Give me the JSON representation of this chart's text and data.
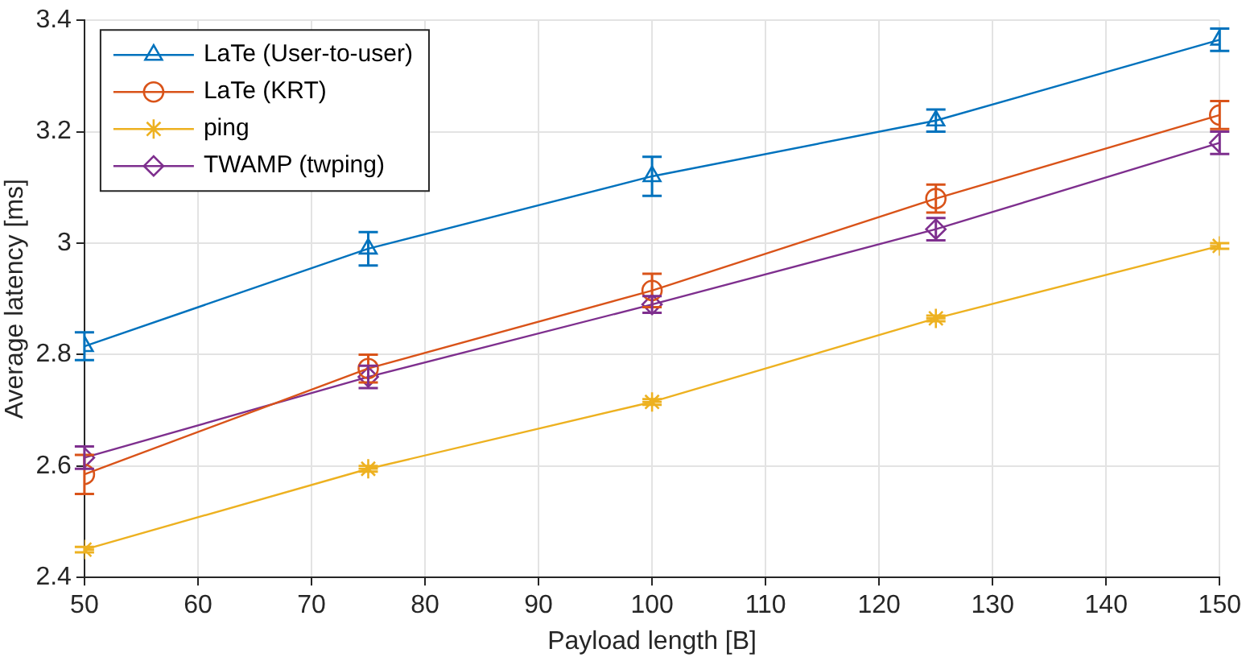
{
  "chart_data": {
    "type": "line",
    "xlabel": "Payload length [B]",
    "ylabel": "Average latency [ms]",
    "x": [
      50,
      75,
      100,
      125,
      150
    ],
    "xlim": [
      50,
      150
    ],
    "xticks": [
      50,
      60,
      70,
      80,
      90,
      100,
      110,
      120,
      130,
      140,
      150
    ],
    "ylim": [
      2.4,
      3.4
    ],
    "yticks": [
      2.4,
      2.6,
      2.8,
      3,
      3.2,
      3.4
    ],
    "grid": true,
    "legend": "top left",
    "line_style": "solid",
    "series": [
      {
        "name": "LaTe (User-to-user)",
        "color": "#0072bd",
        "marker": "triangle",
        "values": [
          2.815,
          2.99,
          3.12,
          3.22,
          3.365
        ],
        "errors": [
          0.025,
          0.03,
          0.035,
          0.02,
          0.02
        ]
      },
      {
        "name": "LaTe (KRT)",
        "color": "#d95319",
        "marker": "circle",
        "values": [
          2.585,
          2.775,
          2.915,
          3.08,
          3.23
        ],
        "errors": [
          0.035,
          0.025,
          0.03,
          0.025,
          0.025
        ]
      },
      {
        "name": "ping",
        "color": "#edb120",
        "marker": "cross",
        "values": [
          2.45,
          2.595,
          2.715,
          2.865,
          2.995
        ],
        "errors": [
          0.005,
          0.005,
          0.005,
          0.005,
          0.005
        ]
      },
      {
        "name": "TWAMP (twping)",
        "color": "#7e2f8e",
        "marker": "diamond",
        "values": [
          2.615,
          2.76,
          2.89,
          3.025,
          3.18
        ],
        "errors": [
          0.02,
          0.02,
          0.015,
          0.02,
          0.02
        ]
      }
    ]
  }
}
